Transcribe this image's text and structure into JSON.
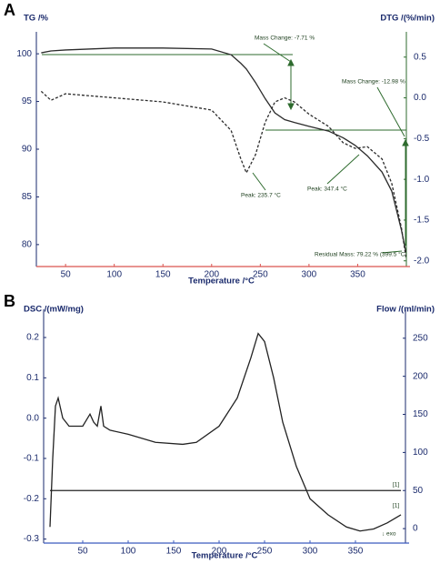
{
  "chart_data": [
    {
      "type": "line",
      "panel_label": "A",
      "y_label": "TG /%",
      "y2_label": "DTG /(%/min)",
      "x_label": "Temperature /°C",
      "x": [
        25,
        35,
        50,
        100,
        150,
        200,
        220,
        230,
        235.7,
        245,
        255,
        265,
        275,
        285,
        300,
        320,
        335,
        347.4,
        360,
        375,
        385,
        395,
        399.5
      ],
      "series": [
        {
          "color": "#2b2b2b",
          "values": [
            100.1,
            100.3,
            100.4,
            100.6,
            100.6,
            100.5,
            99.9,
            99.0,
            98.4,
            97.0,
            95.3,
            93.8,
            93.1,
            92.8,
            92.4,
            91.9,
            91.2,
            90.4,
            89.3,
            87.6,
            85.6,
            81.5,
            79.22
          ]
        },
        {
          "color": "#2b2b2b",
          "dashed": true,
          "axis": "y2",
          "values": [
            0.08,
            -0.03,
            0.05,
            0.0,
            -0.05,
            -0.15,
            -0.4,
            -0.75,
            -0.92,
            -0.7,
            -0.3,
            -0.05,
            0.0,
            -0.05,
            -0.2,
            -0.35,
            -0.55,
            -0.62,
            -0.6,
            -0.75,
            -1.05,
            -1.6,
            -1.95
          ]
        }
      ],
      "xlim": [
        20,
        400
      ],
      "xticks": [
        50,
        100,
        150,
        200,
        250,
        300,
        350
      ],
      "ylim": [
        77.7,
        102.3
      ],
      "yticks": [
        80,
        85,
        90,
        95,
        100
      ],
      "y2lim": [
        -2.07,
        0.81
      ],
      "y2ticks": [
        0.5,
        {
          "value": 0,
          "label": "0.0"
        },
        -0.5,
        {
          "value": -1,
          "label": "-1.0"
        },
        -1.5,
        {
          "value": -2,
          "label": "-2.0"
        }
      ],
      "x_axis_color": "#d9534f",
      "y_axis_color": "#1a2a6c",
      "y2_axis_color": "#2e6b2e",
      "annotations": [
        "Mass Change: -7.71 %",
        "Mass Change: -12.98 %",
        "Peak: 235.7 °C",
        "Peak: 347.4 °C",
        "Residual Mass: 79.22 % (399.5 °C)"
      ]
    },
    {
      "type": "line",
      "panel_label": "B",
      "y_label": "DSC /(mW/mg)",
      "y2_label": "Flow /(ml/min)",
      "x_label": "Temperature /°C",
      "x": [
        14,
        17,
        20,
        23,
        28,
        35,
        50,
        58,
        62,
        66,
        70,
        73,
        80,
        100,
        130,
        160,
        175,
        200,
        220,
        235,
        243,
        250,
        260,
        270,
        285,
        300,
        320,
        340,
        355,
        370,
        385,
        400
      ],
      "series": [
        {
          "color": "#222222",
          "values": [
            -0.27,
            -0.1,
            0.03,
            0.05,
            0.0,
            -0.02,
            -0.02,
            0.01,
            -0.01,
            -0.02,
            0.03,
            -0.02,
            -0.03,
            -0.04,
            -0.06,
            -0.065,
            -0.06,
            -0.02,
            0.05,
            0.15,
            0.21,
            0.19,
            0.1,
            -0.01,
            -0.12,
            -0.2,
            -0.24,
            -0.27,
            -0.28,
            -0.275,
            -0.26,
            -0.24
          ]
        },
        {
          "color": "#222222",
          "axis": "y2",
          "values": [
            50,
            50,
            50,
            50,
            50,
            50,
            50,
            50,
            50,
            50,
            50,
            50,
            50,
            50,
            50,
            50,
            50,
            50,
            50,
            50,
            50,
            50,
            50,
            50,
            50,
            50,
            50,
            50,
            50,
            50,
            50,
            50
          ]
        }
      ],
      "xlim": [
        7,
        405
      ],
      "xticks": [
        50,
        100,
        150,
        200,
        250,
        300,
        350
      ],
      "ylim": [
        -0.31,
        0.27
      ],
      "yticks": [
        0.2,
        0.1,
        {
          "value": 0,
          "label": "0.0"
        },
        -0.1,
        -0.2,
        -0.3
      ],
      "y2lim": [
        -19,
        288
      ],
      "y2ticks": [
        0,
        50,
        100,
        150,
        200,
        250
      ],
      "x_axis_color": "#3b5bbf",
      "y_axis_color": "#1a2a6c",
      "y2_axis_color": "#1a2a6c",
      "annotations": [
        "[1]",
        "[1]",
        "↓ exo"
      ]
    }
  ]
}
